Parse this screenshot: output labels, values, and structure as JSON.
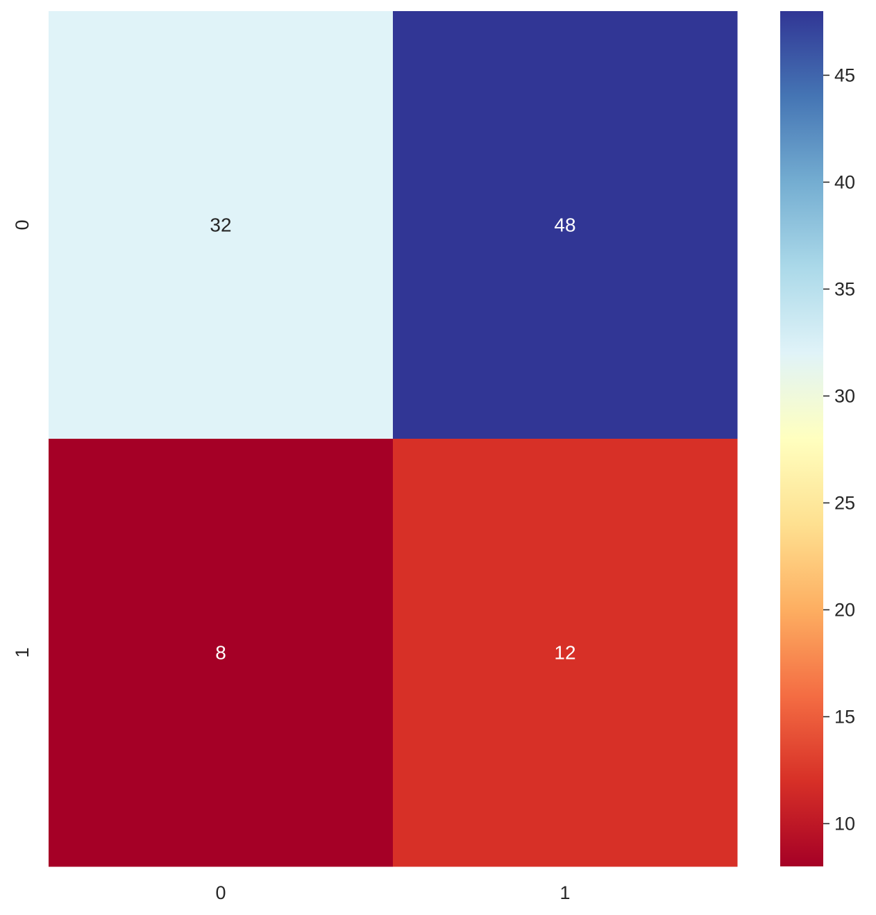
{
  "chart_data": {
    "type": "heatmap",
    "title": "",
    "xlabel": "",
    "ylabel": "",
    "x_categories": [
      "0",
      "1"
    ],
    "y_categories": [
      "0",
      "1"
    ],
    "values": [
      [
        32,
        48
      ],
      [
        8,
        12
      ]
    ],
    "annotations": [
      [
        "32",
        "48"
      ],
      [
        "8",
        "12"
      ]
    ],
    "colormap": "RdYlBu",
    "color_range": [
      8,
      48
    ],
    "colorbar_ticks": [
      10,
      15,
      20,
      25,
      30,
      35,
      40,
      45
    ],
    "colorbar_tick_labels": [
      "10",
      "15",
      "20",
      "25",
      "30",
      "35",
      "40",
      "45"
    ],
    "colorbar_position": "right",
    "grid": false
  }
}
